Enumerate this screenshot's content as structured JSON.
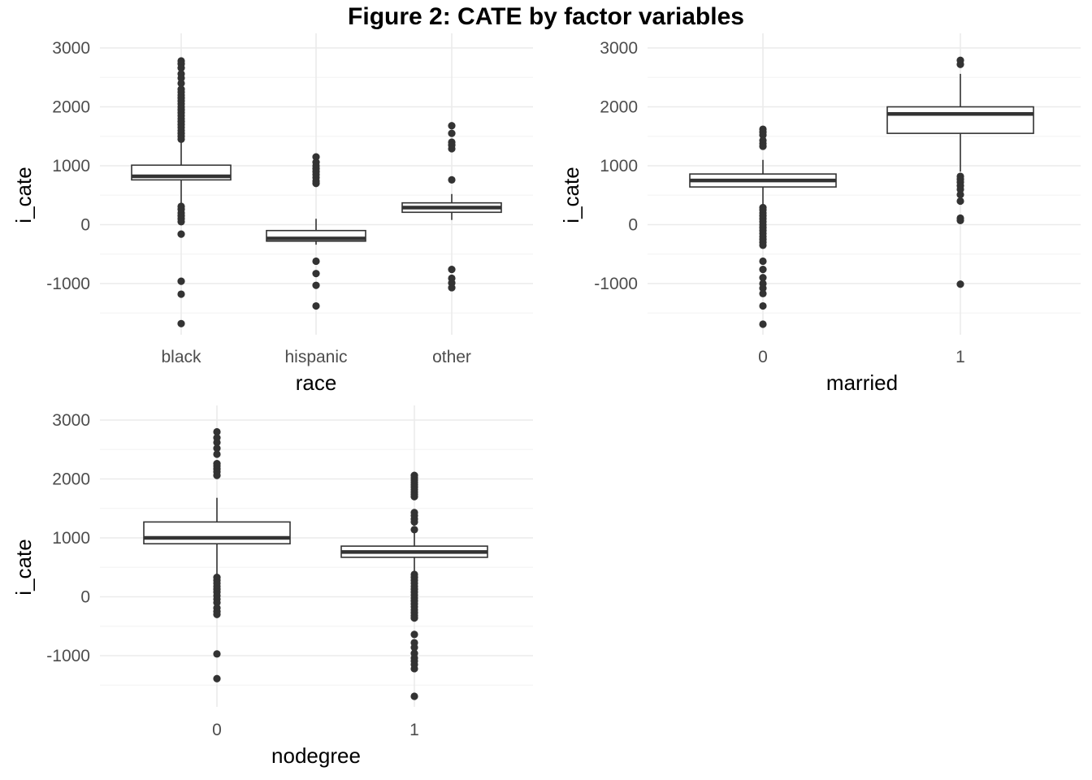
{
  "title": "Figure 2: CATE by factor variables",
  "colors": {
    "background": "#ffffff",
    "grid_major": "#ebebeb",
    "grid_minor": "#f4f4f4",
    "box": "#333333",
    "outlier": "#333333",
    "tick_text": "#4d4d4d",
    "axis_text": "#000000"
  },
  "chart_data": [
    {
      "type": "boxplot",
      "xlabel": "race",
      "ylabel": "i_cate",
      "ylim": [
        -1850,
        3000
      ],
      "yticks": [
        -1000,
        0,
        1000,
        2000,
        3000
      ],
      "grid": true,
      "categories": [
        "black",
        "hispanic",
        "other"
      ],
      "boxes": [
        {
          "category": "black",
          "whisker_low": 350,
          "q1": 760,
          "median": 820,
          "q3": 1010,
          "whisker_high": 1420,
          "outliers": [
            2780,
            2730,
            2660,
            2560,
            2490,
            2400,
            2300,
            2250,
            2200,
            2150,
            2100,
            2050,
            2000,
            1950,
            1900,
            1850,
            1800,
            1750,
            1700,
            1650,
            1600,
            1550,
            1500,
            1450,
            310,
            260,
            200,
            150,
            100,
            50,
            -160,
            -960,
            -1180,
            -1680
          ]
        },
        {
          "category": "hispanic",
          "whisker_low": -340,
          "q1": -280,
          "median": -235,
          "q3": -100,
          "whisker_high": 100,
          "outliers": [
            1150,
            1060,
            1000,
            950,
            900,
            850,
            800,
            740,
            700,
            -620,
            -830,
            -1030,
            -1380
          ]
        },
        {
          "category": "other",
          "whisker_low": 80,
          "q1": 210,
          "median": 290,
          "q3": 370,
          "whisker_high": 520,
          "outliers": [
            1680,
            1550,
            1400,
            1350,
            1290,
            760,
            -760,
            -910,
            -990,
            -1070
          ]
        }
      ]
    },
    {
      "type": "boxplot",
      "xlabel": "married",
      "ylabel": "i_cate",
      "ylim": [
        -1850,
        3000
      ],
      "yticks": [
        -1000,
        0,
        1000,
        2000,
        3000
      ],
      "grid": true,
      "categories": [
        "0",
        "1"
      ],
      "boxes": [
        {
          "category": "0",
          "whisker_low": 340,
          "q1": 640,
          "median": 750,
          "q3": 860,
          "whisker_high": 1100,
          "outliers": [
            1620,
            1570,
            1520,
            1430,
            1380,
            1330,
            290,
            250,
            200,
            150,
            100,
            50,
            0,
            -50,
            -100,
            -150,
            -200,
            -250,
            -300,
            -350,
            -620,
            -760,
            -900,
            -1000,
            -1080,
            -1170,
            -1380,
            -1690
          ]
        },
        {
          "category": "1",
          "whisker_low": 900,
          "q1": 1550,
          "median": 1880,
          "q3": 2000,
          "whisker_high": 2560,
          "outliers": [
            2790,
            2720,
            820,
            770,
            720,
            660,
            600,
            510,
            400,
            110,
            70,
            -1010
          ]
        }
      ]
    },
    {
      "type": "boxplot",
      "xlabel": "nodegree",
      "ylabel": "i_cate",
      "ylim": [
        -1850,
        3000
      ],
      "yticks": [
        -1000,
        0,
        1000,
        2000,
        3000
      ],
      "grid": true,
      "categories": [
        "0",
        "1"
      ],
      "boxes": [
        {
          "category": "0",
          "whisker_low": 350,
          "q1": 900,
          "median": 1000,
          "q3": 1270,
          "whisker_high": 1680,
          "outliers": [
            2800,
            2700,
            2620,
            2520,
            2420,
            2260,
            2220,
            2170,
            2120,
            2060,
            330,
            280,
            230,
            180,
            130,
            80,
            20,
            -40,
            -100,
            -190,
            -250,
            -300,
            -970,
            -1390
          ]
        },
        {
          "category": "1",
          "whisker_low": 350,
          "q1": 670,
          "median": 760,
          "q3": 860,
          "whisker_high": 1100,
          "outliers": [
            2060,
            2020,
            1980,
            1940,
            1900,
            1860,
            1820,
            1780,
            1740,
            1700,
            1430,
            1380,
            1320,
            1270,
            1140,
            380,
            330,
            280,
            230,
            180,
            130,
            80,
            30,
            -20,
            -70,
            -120,
            -170,
            -220,
            -270,
            -320,
            -360,
            -640,
            -780,
            -860,
            -960,
            -1040,
            -1090,
            -1150,
            -1220,
            -1690
          ]
        }
      ]
    }
  ]
}
